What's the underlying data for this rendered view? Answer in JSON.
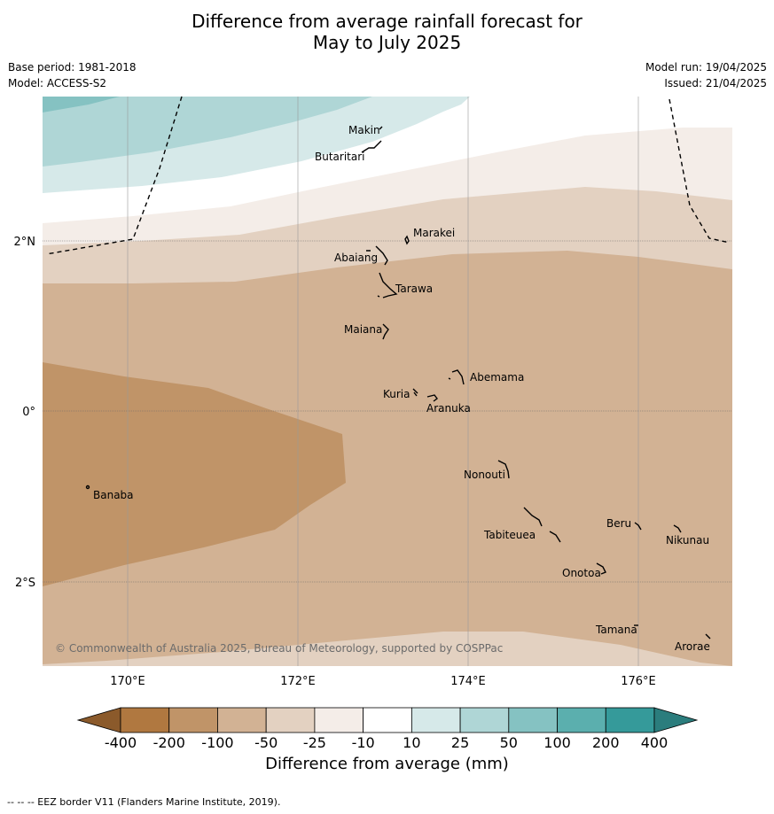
{
  "title_line1": "Difference from average rainfall forecast for",
  "title_line2": "May to July 2025",
  "base_period": "Base period: 1981-2018",
  "model": "Model: ACCESS-S2",
  "model_run": "Model run: 19/04/2025",
  "issued": "Issued: 21/04/2025",
  "copyright": "© Commonwealth of Australia 2025, Bureau of Meteorology, supported by COSPPac",
  "lat_labels": [
    "2°N",
    "0°",
    "2°S"
  ],
  "lon_labels": [
    "170°E",
    "172°E",
    "174°E",
    "176°E"
  ],
  "places": [
    "Makin",
    "Butaritari",
    "Marakei",
    "Abaiang",
    "Tarawa",
    "Maiana",
    "Abemama",
    "Kuria",
    "Aranuka",
    "Nonouti",
    "Banaba",
    "Beru",
    "Nikunau",
    "Tabiteuea",
    "Onotoa",
    "Tamana",
    "Arorae"
  ],
  "legend": {
    "ticks": [
      "-400",
      "-200",
      "-100",
      "-50",
      "-25",
      "-10",
      "10",
      "25",
      "50",
      "100",
      "200",
      "400"
    ],
    "colors": [
      "#8b5a2b",
      "#b07840",
      "#c09468",
      "#d2b294",
      "#e3d1c1",
      "#f4ede8",
      "#ffffff",
      "#d6e9e9",
      "#afd6d6",
      "#85c2c2",
      "#5bafae",
      "#359a9a",
      "#2b7d7d"
    ],
    "title": "Difference from average (mm)"
  },
  "footnote": "--  --  -- EEZ border V11 (Flanders Marine Institute, 2019)."
}
